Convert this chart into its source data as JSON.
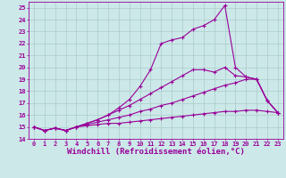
{
  "background_color": "#cce8e8",
  "grid_color": "#aacccc",
  "line_color": "#990099",
  "xlabel": "Windchill (Refroidissement éolien,°C)",
  "xlabel_fontsize": 6.5,
  "xlim": [
    -0.5,
    23.5
  ],
  "ylim": [
    14,
    25.5
  ],
  "yticks": [
    14,
    15,
    16,
    17,
    18,
    19,
    20,
    21,
    22,
    23,
    24,
    25
  ],
  "xticks": [
    0,
    1,
    2,
    3,
    4,
    5,
    6,
    7,
    8,
    9,
    10,
    11,
    12,
    13,
    14,
    15,
    16,
    17,
    18,
    19,
    20,
    21,
    22,
    23
  ],
  "series": [
    [
      15.0,
      14.7,
      14.9,
      14.7,
      15.0,
      15.1,
      15.2,
      15.3,
      15.3,
      15.4,
      15.5,
      15.6,
      15.7,
      15.8,
      15.9,
      16.0,
      16.1,
      16.2,
      16.3,
      16.3,
      16.4,
      16.4,
      16.3,
      16.2
    ],
    [
      15.0,
      14.7,
      14.9,
      14.7,
      15.0,
      15.2,
      15.4,
      15.6,
      15.8,
      16.0,
      16.3,
      16.5,
      16.8,
      17.0,
      17.3,
      17.6,
      17.9,
      18.2,
      18.5,
      18.7,
      19.0,
      19.0,
      17.2,
      16.2
    ],
    [
      15.0,
      14.7,
      14.9,
      14.7,
      15.0,
      15.3,
      15.6,
      16.0,
      16.4,
      16.8,
      17.3,
      17.8,
      18.3,
      18.8,
      19.3,
      19.8,
      19.8,
      19.6,
      20.0,
      19.3,
      19.2,
      19.0,
      17.2,
      16.2
    ],
    [
      15.0,
      14.7,
      14.9,
      14.7,
      15.0,
      15.3,
      15.6,
      16.0,
      16.6,
      17.3,
      18.4,
      19.8,
      22.0,
      22.3,
      22.5,
      23.2,
      23.5,
      24.0,
      25.2,
      20.0,
      19.2,
      19.0,
      17.2,
      16.2
    ]
  ]
}
